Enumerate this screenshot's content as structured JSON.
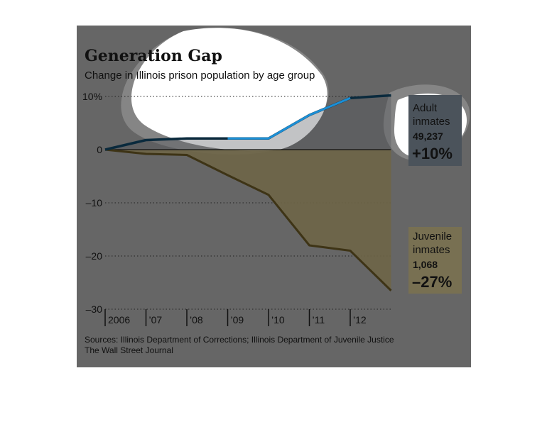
{
  "chart_data": {
    "type": "line",
    "title": "Generation Gap",
    "subtitle": "Change in Illinois prison population by age group",
    "x": [
      "2006",
      "’07",
      "’08",
      "’09",
      "’10",
      "’11",
      "’12",
      ""
    ],
    "x_tick_labels": [
      "2006",
      "’07",
      "’08",
      "’09",
      "’10",
      "’11",
      "’12"
    ],
    "y_ticks": [
      10,
      0,
      -10,
      -20,
      -30
    ],
    "y_tick_labels": [
      "10%",
      "0",
      "–10",
      "–20",
      "–30"
    ],
    "ylim": [
      -30,
      10
    ],
    "grid": true,
    "series": [
      {
        "name": "Adult inmates",
        "count": "49,237",
        "change": "+10%",
        "values": [
          0,
          1.8,
          2.1,
          2.1,
          2.1,
          6.5,
          9.7,
          10.2
        ],
        "color": "#0a2a3d",
        "highlight_color": "#1b8fd6",
        "label_bg": "#4b535b"
      },
      {
        "name": "Juvenile inmates",
        "count": "1,068",
        "change": "–27%",
        "values": [
          0,
          -0.8,
          -1.0,
          -4.8,
          -8.5,
          -18.0,
          -19.0,
          -26.5
        ],
        "color": "#3e3416",
        "fill_color": "#6e6547",
        "label_bg": "#787052"
      }
    ]
  },
  "source": "Sources: Illinois Department of Corrections; Illinois Department of Juvenile Justice",
  "credit": "The Wall Street Journal"
}
